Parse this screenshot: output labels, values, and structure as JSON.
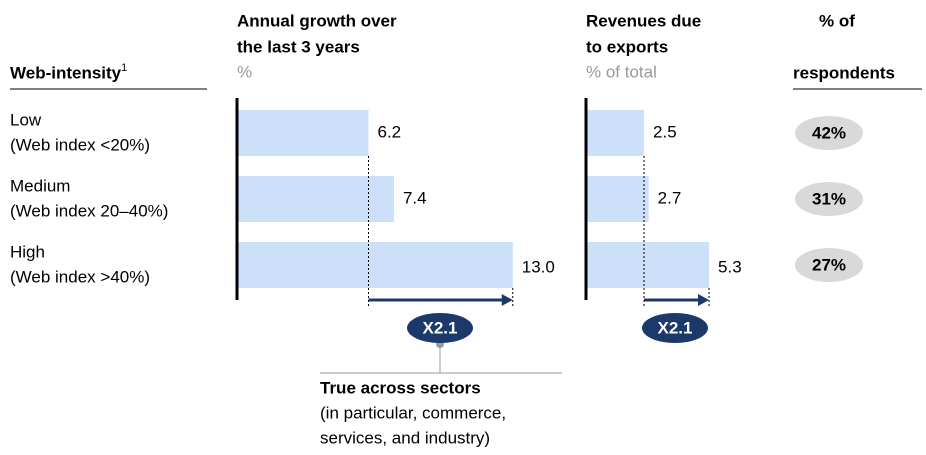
{
  "row_header": {
    "text": "Web-intensity",
    "footnote": "1"
  },
  "rows": [
    {
      "name": "Low",
      "detail": "(Web index <20%)"
    },
    {
      "name": "Medium",
      "detail": "(Web index 20–40%)"
    },
    {
      "name": "High",
      "detail": "(Web index >40%)"
    }
  ],
  "chart_data": [
    {
      "type": "bar",
      "orientation": "horizontal",
      "title": [
        "Annual growth over",
        "the last 3 years"
      ],
      "unit": "%",
      "values": [
        6.2,
        7.4,
        13.0
      ],
      "value_labels": [
        "6.2",
        "7.4",
        "13.0"
      ],
      "color": "#cce1f9",
      "xlim": [
        0,
        13.2
      ],
      "annotation": "X2.1"
    },
    {
      "type": "bar",
      "orientation": "horizontal",
      "title": [
        "Revenues due",
        "to exports"
      ],
      "unit": "% of total",
      "values": [
        2.5,
        2.7,
        5.3
      ],
      "value_labels": [
        "2.5",
        "2.7",
        "5.3"
      ],
      "color": "#cce1f9",
      "xlim": [
        0,
        5.6
      ],
      "annotation": "X2.1"
    }
  ],
  "respondents": {
    "title": [
      "% of",
      "respondents"
    ],
    "values": [
      42,
      31,
      27
    ],
    "value_labels": [
      "42%",
      "31%",
      "27%"
    ]
  },
  "callout": {
    "title": "True across sectors",
    "lines": [
      "(in particular, commerce,",
      "services, and industry)"
    ]
  }
}
